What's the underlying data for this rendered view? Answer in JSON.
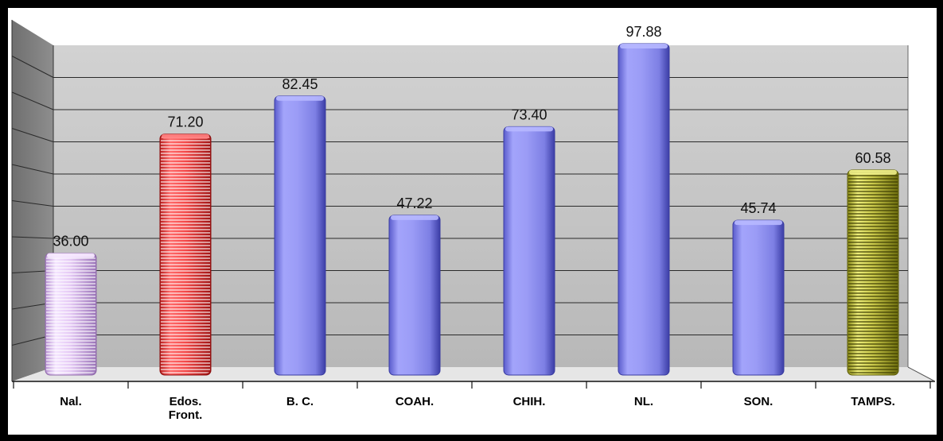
{
  "chart_data": {
    "type": "bar",
    "categories": [
      "Nal.",
      "Edos. Front.",
      "B. C.",
      "COAH.",
      "CHIH.",
      "NL.",
      "SON.",
      "TAMPS."
    ],
    "category_lines": [
      [
        "Nal."
      ],
      [
        "Edos.",
        "Front."
      ],
      [
        "B. C."
      ],
      [
        "COAH."
      ],
      [
        "CHIH."
      ],
      [
        "NL."
      ],
      [
        "SON."
      ],
      [
        "TAMPS."
      ]
    ],
    "values": [
      36.0,
      71.2,
      82.45,
      47.22,
      73.4,
      97.88,
      45.74,
      60.58
    ],
    "value_labels": [
      "36.00",
      "71.20",
      "82.45",
      "47.22",
      "73.40",
      "97.88",
      "45.74",
      "60.58"
    ],
    "bar_styles": [
      "lavender-stripe",
      "red-stripe",
      "blue",
      "blue",
      "blue",
      "blue",
      "blue",
      "olive-stripe"
    ],
    "title": "",
    "xlabel": "",
    "ylabel": "",
    "ylim": [
      0,
      100
    ],
    "grid": true,
    "legend": "none",
    "colors": {
      "background": "#000000",
      "plot_area": "#c4c4c4",
      "side_wall": "#7a7a7a",
      "grid": "#222222",
      "blue_bar": "#9b9cf6",
      "blue_bar_dark": "#4548b8",
      "red_bar": "#f44a4a",
      "lavender_bar": "#e4c8f4",
      "olive_bar": "#c9c84a"
    }
  }
}
